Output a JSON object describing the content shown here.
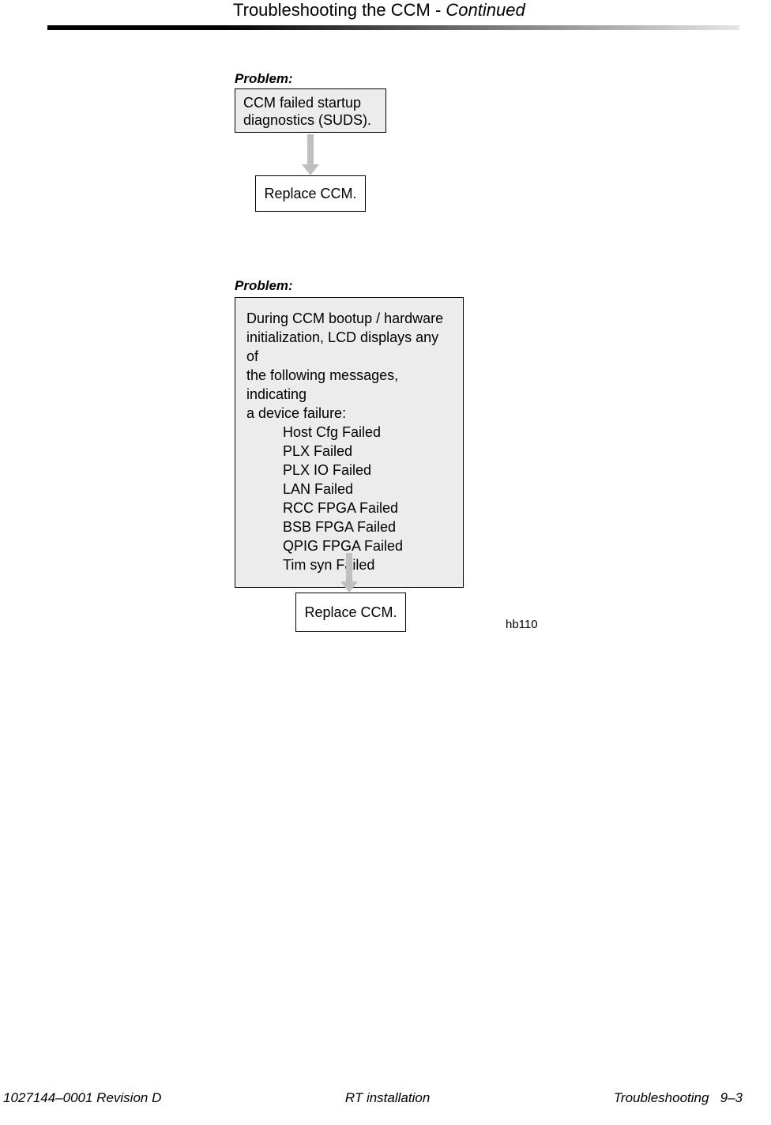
{
  "header": {
    "title": "Troubleshooting the CCM - ",
    "continued": "Continued"
  },
  "flow1": {
    "problem_label": "Problem:",
    "box1_line1": "CCM failed startup",
    "box1_line2": "diagnostics (SUDS).",
    "box2": "Replace CCM."
  },
  "flow2": {
    "problem_label": "Problem:",
    "intro_l1": "During CCM bootup / hardware",
    "intro_l2": "initialization, LCD displays any of",
    "intro_l3": "the following messages, indicating",
    "intro_l4": "a device failure:",
    "msgs": {
      "m0": "Host Cfg Failed",
      "m1": "PLX Failed",
      "m2": "PLX IO Failed",
      "m3": "LAN Failed",
      "m4": "RCC FPGA Failed",
      "m5": "BSB FPGA Failed",
      "m6": "QPIG FPGA Failed",
      "m7": "Tim syn Failed"
    },
    "box2": "Replace CCM.",
    "fig_ref": "hb110"
  },
  "footer": {
    "left": "1027144–0001  Revision D",
    "center": "RT installation",
    "right_section": "Troubleshooting",
    "right_page": "9–3"
  },
  "colors": {
    "box_fill": "#ececec",
    "arrow_fill": "#bfbfbf",
    "text": "#000000",
    "page_bg": "#ffffff",
    "rule_dark": "#000000",
    "rule_light": "#e6e6e6"
  }
}
